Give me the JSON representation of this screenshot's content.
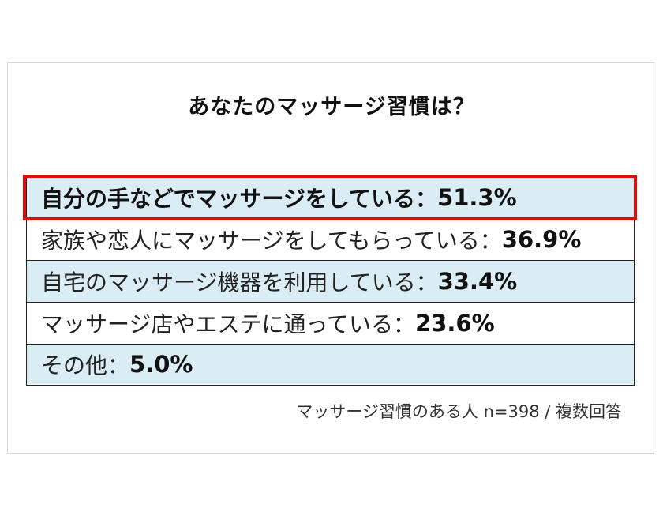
{
  "chart_data": {
    "type": "table",
    "title": "あなたのマッサージ習慣は？",
    "categories": [
      "自分の手などでマッサージをしている：",
      "家族や恋人にマッサージをしてもらっている：",
      "自宅のマッサージ機器を利用している：",
      "マッサージ店やエステに通っている：",
      "その他："
    ],
    "value_labels": [
      "51.3%",
      "36.9%",
      "33.4%",
      "23.6%",
      "5.0%"
    ],
    "values": [
      51.3,
      36.9,
      33.4,
      23.6,
      5.0
    ],
    "highlighted_index": 0,
    "note": "マッサージ習慣のある人 n=398 /  複数回答"
  },
  "colors": {
    "row_shade": "#daedf4",
    "highlight": "#e10d0d",
    "border": "#222222"
  }
}
